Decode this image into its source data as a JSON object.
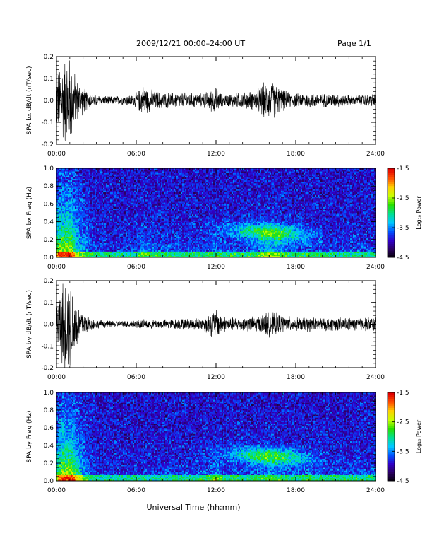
{
  "header": {
    "title": "2009/12/21  00:00–24:00 UT",
    "page": "Page 1/1"
  },
  "x_label": "Universal Time (hh:mm)",
  "colorbar": {
    "label": "Log₁₀ Power",
    "ticks": [
      "-1.5",
      "-2.5",
      "-3.5",
      "-4.5"
    ],
    "range": [
      -4.5,
      -1.5
    ],
    "colors": [
      "#000000",
      "#2a0060",
      "#3000c8",
      "#0050ff",
      "#00c8ff",
      "#00e090",
      "#28e000",
      "#c8ff00",
      "#ffd000",
      "#ff5000",
      "#e00000"
    ]
  },
  "chart_data": [
    {
      "type": "line",
      "title": "",
      "ylabel": "SPA bx dB/dt (nT/sec)",
      "xlabel": "",
      "x_ticks": [
        "00:00",
        "06:00",
        "12:00",
        "18:00",
        "24:00"
      ],
      "xlim": [
        "00:00",
        "24:00"
      ],
      "y_ticks": [
        "0.2",
        "0.1",
        "0.0",
        "-0.1",
        "-0.2"
      ],
      "ylim": [
        -0.2,
        0.2
      ],
      "series": [
        {
          "x": [
            "00:00",
            "00:30",
            "01:00",
            "01:30",
            "02:00",
            "02:30",
            "03:00",
            "04:00",
            "05:00",
            "06:00",
            "06:30",
            "07:00",
            "08:00",
            "09:00",
            "10:00",
            "11:00",
            "12:00",
            "12:30",
            "13:00",
            "14:00",
            "15:00",
            "15:30",
            "16:00",
            "16:30",
            "17:00",
            "17:30",
            "18:00",
            "19:00",
            "20:00",
            "21:00",
            "22:00",
            "23:00",
            "24:00"
          ],
          "values": [
            0.13,
            0.2,
            0.2,
            0.1,
            0.06,
            0.035,
            0.025,
            0.02,
            0.02,
            0.035,
            0.07,
            0.05,
            0.035,
            0.035,
            0.035,
            0.03,
            0.06,
            0.025,
            0.03,
            0.035,
            0.045,
            0.075,
            0.085,
            0.075,
            0.05,
            0.035,
            0.03,
            0.035,
            0.03,
            0.03,
            0.025,
            0.025,
            0.03
          ]
        }
      ]
    },
    {
      "type": "heatmap",
      "title": "",
      "ylabel": "SPA bx Freq (Hz)",
      "xlabel": "",
      "x_ticks": [
        "00:00",
        "06:00",
        "12:00",
        "18:00",
        "24:00"
      ],
      "xlim": [
        "00:00",
        "24:00"
      ],
      "y_ticks": [
        "1.0",
        "0.8",
        "0.6",
        "0.4",
        "0.2",
        "0.0"
      ],
      "ylim": [
        0.0,
        1.0
      ],
      "z_label": "Log₁₀ Power",
      "z_range": [
        -4.5,
        -1.5
      ]
    },
    {
      "type": "line",
      "title": "",
      "ylabel": "SPA by dB/dt (nT/sec)",
      "xlabel": "",
      "x_ticks": [
        "00:00",
        "06:00",
        "12:00",
        "18:00",
        "24:00"
      ],
      "xlim": [
        "00:00",
        "24:00"
      ],
      "y_ticks": [
        "0.2",
        "0.1",
        "0.0",
        "-0.1",
        "-0.2"
      ],
      "ylim": [
        -0.2,
        0.2
      ],
      "series": [
        {
          "x": [
            "00:00",
            "00:30",
            "01:00",
            "01:30",
            "02:00",
            "02:30",
            "03:00",
            "04:00",
            "05:00",
            "06:00",
            "06:30",
            "07:00",
            "08:00",
            "09:00",
            "10:00",
            "11:00",
            "12:00",
            "12:30",
            "13:00",
            "14:00",
            "15:00",
            "15:30",
            "16:00",
            "16:30",
            "17:00",
            "17:30",
            "18:00",
            "19:00",
            "20:00",
            "21:00",
            "22:00",
            "23:00",
            "24:00"
          ],
          "values": [
            0.1,
            0.2,
            0.2,
            0.12,
            0.06,
            0.035,
            0.02,
            0.015,
            0.015,
            0.02,
            0.02,
            0.02,
            0.02,
            0.025,
            0.025,
            0.03,
            0.07,
            0.035,
            0.03,
            0.03,
            0.035,
            0.05,
            0.055,
            0.05,
            0.04,
            0.035,
            0.03,
            0.035,
            0.03,
            0.03,
            0.03,
            0.03,
            0.035
          ]
        }
      ]
    },
    {
      "type": "heatmap",
      "title": "",
      "ylabel": "SPA by Freq (Hz)",
      "xlabel": "",
      "x_ticks": [
        "00:00",
        "06:00",
        "12:00",
        "18:00",
        "24:00"
      ],
      "xlim": [
        "00:00",
        "24:00"
      ],
      "y_ticks": [
        "1.0",
        "0.8",
        "0.6",
        "0.4",
        "0.2",
        "0.0"
      ],
      "ylim": [
        0.0,
        1.0
      ],
      "z_label": "Log₁₀ Power",
      "z_range": [
        -4.5,
        -1.5
      ]
    }
  ]
}
